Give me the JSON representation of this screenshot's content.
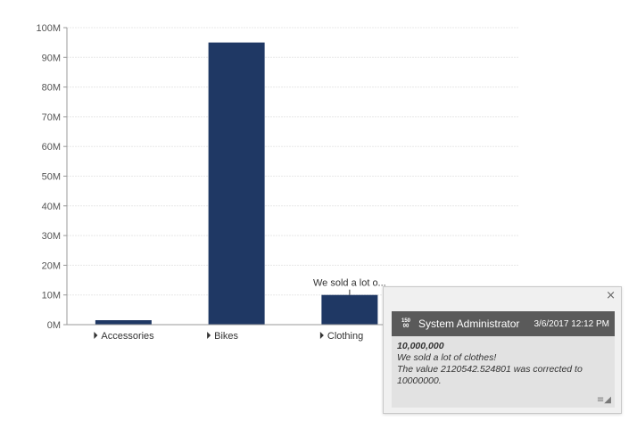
{
  "chart_data": {
    "type": "bar",
    "categories": [
      "Accessories",
      "Bikes",
      "Clothing"
    ],
    "values": [
      1500000,
      95000000,
      10000000
    ],
    "ylim": [
      0,
      100000000
    ],
    "yticks": [
      "0M",
      "10M",
      "20M",
      "30M",
      "40M",
      "50M",
      "60M",
      "70M",
      "80M",
      "90M",
      "100M"
    ],
    "bar_color": "#1f3864",
    "grid": true,
    "annotation": {
      "category": "Clothing",
      "text": "We sold a lot o..."
    }
  },
  "popup": {
    "avatar_top": "150",
    "avatar_bottom": "00",
    "user": "System Administrator",
    "date": "3/6/2017 12:12 PM",
    "value": "10,000,000",
    "line1": "We sold a lot of clothes!",
    "line2": "The value 2120542.524801 was corrected to 10000000.",
    "close": "×",
    "menu": "≡◢"
  }
}
